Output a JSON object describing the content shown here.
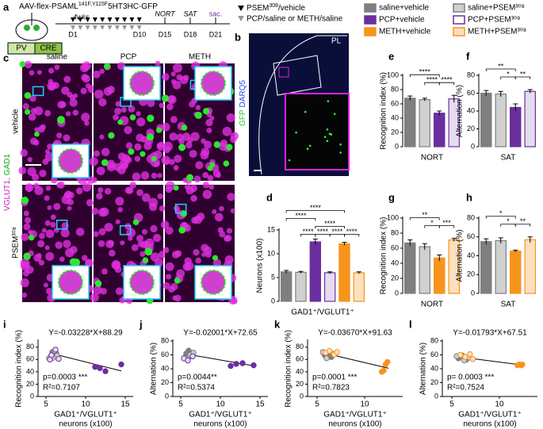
{
  "schematic": {
    "label": "a",
    "vector": [
      "AAV-flex-PSAML",
      "141F,Y115F",
      "5HT3HC-GFP"
    ],
    "cells": [
      "PV",
      "CRE"
    ],
    "duration": "4wks",
    "days": [
      "D1",
      "D10",
      "D15",
      "D18",
      "D21"
    ],
    "tests": [
      "NORT",
      "SAT"
    ],
    "end": "sac."
  },
  "treatment_legend": {
    "psem": [
      "PSEM",
      "308",
      "/vehicle"
    ],
    "drug": "PCP/saline or METH/saline"
  },
  "group_legend": [
    {
      "name": "saline+vehicle",
      "color": "#7f7f7f",
      "fill": "#7f7f7f"
    },
    {
      "name": "saline+PSEM³⁰⁸",
      "color": "#7f7f7f",
      "fill": "#d0d0d0"
    },
    {
      "name": "PCP+vehicle",
      "color": "#6b2fa0",
      "fill": "#6b2fa0"
    },
    {
      "name": "PCP+PSEM³⁰⁸",
      "color": "#6b2fa0",
      "fill": "#ffffff"
    },
    {
      "name": "METH+vehicle",
      "color": "#f7941d",
      "fill": "#f7941d"
    },
    {
      "name": "METH+PSEM³⁰⁸",
      "color": "#f7941d",
      "fill": "#fde0bf"
    }
  ],
  "brain": {
    "label": "b",
    "stain": [
      "GFP",
      "DARQ5"
    ],
    "region": "PL"
  },
  "micro": {
    "label": "c",
    "columns": [
      "saline",
      "PCP",
      "METH"
    ],
    "rows": [
      "vehicle",
      "PSEM³⁰⁸"
    ],
    "stain": [
      "VGLUT1,",
      "GAD1"
    ]
  },
  "chart_data": [
    {
      "label": "d",
      "type": "bar",
      "ylabel": "Neurons (x100)",
      "xlabel": "GAD1⁺/VGLUT1⁺",
      "values": [
        6.2,
        6.1,
        12.5,
        6.0,
        12.1,
        6.0
      ],
      "errors": [
        0.3,
        0.2,
        0.6,
        0.2,
        0.3,
        0.2
      ],
      "colors": [
        "#7f7f7f",
        "#7f7f7f",
        "#6b2fa0",
        "#6b2fa0",
        "#f7941d",
        "#f7941d"
      ],
      "fills": [
        "#7f7f7f",
        "#d0d0d0",
        "#6b2fa0",
        "#e4dcf0",
        "#f7941d",
        "#fde0bf"
      ],
      "ylim": [
        0,
        15
      ],
      "yticks": [
        0,
        5,
        10,
        15
      ],
      "annotations": [
        "****",
        "****",
        "****",
        "****",
        "****",
        "****",
        "****"
      ]
    },
    {
      "label": "e",
      "type": "bar",
      "ylabel": "Recognition index (%)",
      "xlabel": "NORT",
      "values": [
        68,
        66,
        47,
        67
      ],
      "errors": [
        3,
        2,
        3,
        5
      ],
      "colors": [
        "#7f7f7f",
        "#7f7f7f",
        "#6b2fa0",
        "#6b2fa0"
      ],
      "fills": [
        "#7f7f7f",
        "#d0d0d0",
        "#6b2fa0",
        "#e4dcf0"
      ],
      "ylim": [
        0,
        100
      ],
      "yticks": [
        0,
        20,
        40,
        60,
        80,
        100
      ],
      "annotations": [
        "****",
        "****",
        "****"
      ]
    },
    {
      "label": "f",
      "type": "bar",
      "ylabel": "Alternation (%)",
      "xlabel": "SAT",
      "values": [
        60,
        59,
        44,
        62
      ],
      "errors": [
        3,
        3,
        4,
        2
      ],
      "colors": [
        "#7f7f7f",
        "#7f7f7f",
        "#6b2fa0",
        "#6b2fa0"
      ],
      "fills": [
        "#7f7f7f",
        "#d0d0d0",
        "#6b2fa0",
        "#e4dcf0"
      ],
      "ylim": [
        0,
        80
      ],
      "yticks": [
        0,
        20,
        40,
        60,
        80
      ],
      "annotations": [
        "**",
        "*",
        "**"
      ]
    },
    {
      "label": "g",
      "type": "bar",
      "ylabel": "Recognition index (%)",
      "xlabel": "NORT",
      "values": [
        67,
        62,
        47,
        71
      ],
      "errors": [
        4,
        4,
        4,
        2
      ],
      "colors": [
        "#7f7f7f",
        "#7f7f7f",
        "#f7941d",
        "#f7941d"
      ],
      "fills": [
        "#7f7f7f",
        "#d0d0d0",
        "#f7941d",
        "#fde0bf"
      ],
      "ylim": [
        0,
        100
      ],
      "yticks": [
        0,
        20,
        40,
        60,
        80,
        100
      ],
      "annotations": [
        "**",
        "*",
        "***"
      ]
    },
    {
      "label": "h",
      "type": "bar",
      "ylabel": "Alternation (%)",
      "xlabel": "SAT",
      "values": [
        55,
        56,
        45,
        57
      ],
      "errors": [
        3,
        3,
        1,
        3
      ],
      "colors": [
        "#7f7f7f",
        "#7f7f7f",
        "#f7941d",
        "#f7941d"
      ],
      "fills": [
        "#7f7f7f",
        "#d0d0d0",
        "#f7941d",
        "#fde0bf"
      ],
      "ylim": [
        0,
        80
      ],
      "yticks": [
        0,
        20,
        40,
        60,
        80
      ],
      "annotations": [
        "*",
        "*",
        "**"
      ]
    },
    {
      "label": "i",
      "type": "scatter",
      "equation": "Y=-0.03228*X+88.29",
      "p": "p=0.0003 ***",
      "r2": "R²=0.7107",
      "ylabel": "Recognition index (%)",
      "xlabel": [
        "GAD1⁺/VGLUT1⁺",
        "neurons (x100)"
      ],
      "xlim": [
        4,
        16
      ],
      "xticks": [
        5,
        10,
        15
      ],
      "ylim": [
        0,
        90
      ],
      "yticks": [
        0,
        20,
        40,
        60,
        80
      ],
      "fit": {
        "x": [
          5.5,
          14.5
        ],
        "y": [
          70.5,
          41.5
        ]
      },
      "series": [
        {
          "color": "#7f7f7f",
          "fill": "#7f7f7f",
          "x": [
            5.6,
            6.0,
            6.3,
            5.8
          ],
          "y": [
            65,
            68,
            70,
            72
          ]
        },
        {
          "color": "#7f7f7f",
          "fill": "#d0d0d0",
          "x": [
            5.4,
            6.1,
            6.4,
            5.9
          ],
          "y": [
            62,
            74,
            66,
            63
          ]
        },
        {
          "color": "#6b2fa0",
          "fill": "#6b2fa0",
          "x": [
            11.2,
            11.8,
            12.5,
            14.5
          ],
          "y": [
            48,
            46,
            41,
            52
          ]
        },
        {
          "color": "#6b2fa0",
          "fill": "#e4dcf0",
          "x": [
            5.5,
            6.2,
            6.6,
            5.7
          ],
          "y": [
            60,
            76,
            61,
            67
          ]
        }
      ]
    },
    {
      "label": "j",
      "type": "scatter",
      "equation": "Y=-0.02001*X+72.65",
      "p": "p=0.0044**",
      "r2": "R²=0.5374",
      "ylabel": "Alternation (%)",
      "xlabel": [
        "GAD1⁺/VGLUT1⁺",
        "neurons (x100)"
      ],
      "xlim": [
        4,
        16
      ],
      "xticks": [
        5,
        10,
        15
      ],
      "ylim": [
        0,
        80
      ],
      "yticks": [
        0,
        20,
        40,
        60,
        80
      ],
      "fit": {
        "x": [
          5.5,
          14.5
        ],
        "y": [
          61.6,
          43.6
        ]
      },
      "series": [
        {
          "color": "#7f7f7f",
          "fill": "#7f7f7f",
          "x": [
            5.7,
            6.0,
            6.4
          ],
          "y": [
            62,
            66,
            58
          ]
        },
        {
          "color": "#7f7f7f",
          "fill": "#d0d0d0",
          "x": [
            5.5,
            6.2,
            6.6
          ],
          "y": [
            56,
            60,
            63
          ]
        },
        {
          "color": "#6b2fa0",
          "fill": "#6b2fa0",
          "x": [
            11.3,
            12.0,
            12.8,
            14.2
          ],
          "y": [
            44,
            47,
            48,
            45
          ]
        },
        {
          "color": "#6b2fa0",
          "fill": "#e4dcf0",
          "x": [
            5.4,
            5.9,
            6.5
          ],
          "y": [
            55,
            52,
            58
          ]
        }
      ]
    },
    {
      "label": "k",
      "type": "scatter",
      "equation": "Y=-0.03670*X+91.63",
      "p": "p=0.0001 ***",
      "r2": "R²=0.7823",
      "ylabel": "Recognition index (%)",
      "xlabel": [
        "GAD1⁺/VGLUT1⁺",
        "neurons (x100)"
      ],
      "xlim": [
        4,
        14
      ],
      "xticks": [
        5,
        10
      ],
      "ylim": [
        0,
        90
      ],
      "yticks": [
        0,
        20,
        40,
        60,
        80
      ],
      "fit": {
        "x": [
          5.5,
          12.5
        ],
        "y": [
          71.4,
          45.8
        ]
      },
      "series": [
        {
          "color": "#7f7f7f",
          "fill": "#7f7f7f",
          "x": [
            5.8,
            6.2,
            6.5
          ],
          "y": [
            67,
            70,
            64
          ]
        },
        {
          "color": "#7f7f7f",
          "fill": "#d0d0d0",
          "x": [
            5.6,
            6.0,
            6.7
          ],
          "y": [
            72,
            62,
            69
          ]
        },
        {
          "color": "#f7941d",
          "fill": "#f7941d",
          "x": [
            11.8,
            12.0,
            12.2,
            12.4
          ],
          "y": [
            40,
            42,
            52,
            56
          ]
        },
        {
          "color": "#f7941d",
          "fill": "#fde0bf",
          "x": [
            5.9,
            6.3,
            6.8,
            7.1
          ],
          "y": [
            71,
            74,
            68,
            72
          ]
        }
      ]
    },
    {
      "label": "l",
      "type": "scatter",
      "equation": "Y=-0.01793*X+67.51",
      "p": "p= 0.0003 ***",
      "r2": "R²=0.7524",
      "ylabel": "Alternation (%)",
      "xlabel": [
        "GAD1⁺/VGLUT1⁺",
        "neurons (x100)"
      ],
      "xlim": [
        4,
        14
      ],
      "xticks": [
        5,
        10
      ],
      "ylim": [
        0,
        80
      ],
      "yticks": [
        0,
        20,
        40,
        60,
        80
      ],
      "fit": {
        "x": [
          5.5,
          12.5
        ],
        "y": [
          57.6,
          45.1
        ]
      },
      "series": [
        {
          "color": "#7f7f7f",
          "fill": "#7f7f7f",
          "x": [
            5.7,
            6.1,
            6.5
          ],
          "y": [
            55,
            59,
            53
          ]
        },
        {
          "color": "#7f7f7f",
          "fill": "#d0d0d0",
          "x": [
            5.5,
            6.3,
            6.8
          ],
          "y": [
            58,
            52,
            56
          ]
        },
        {
          "color": "#f7941d",
          "fill": "#f7941d",
          "x": [
            11.9,
            12.1,
            12.3,
            12.4
          ],
          "y": [
            45,
            46,
            45,
            46
          ]
        },
        {
          "color": "#f7941d",
          "fill": "#fde0bf",
          "x": [
            5.9,
            6.4,
            6.9,
            7.2
          ],
          "y": [
            60,
            57,
            61,
            54
          ]
        }
      ]
    }
  ]
}
